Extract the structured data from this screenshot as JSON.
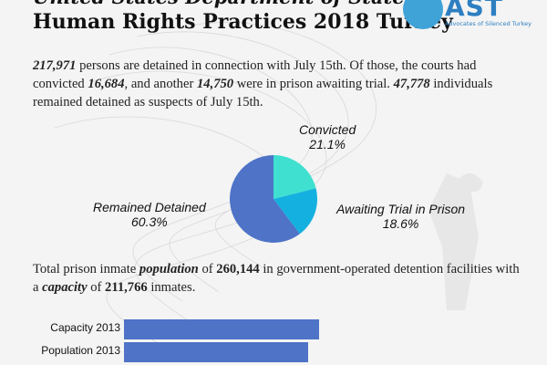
{
  "header": {
    "title_line1": "United States Department of State",
    "title_line2": "Human Rights Practices 2018 Turkey",
    "logo_text": "AST",
    "logo_subtitle": "Advocates of Silenced Turkey"
  },
  "paragraph1": {
    "n1": "217,971",
    "t1": " persons are detained in connection with July 15th. Of those, the courts had convicted ",
    "n2": "16,684",
    "t2": ", and another ",
    "n3": "14,750",
    "t3": " were in prison awaiting trial. ",
    "n4": "47,778",
    "t4": " individuals remained detained as suspects of July 15th."
  },
  "paragraph2": {
    "t1": "Total prison inmate ",
    "k1": "population",
    "t2": " of ",
    "n1": "260,144",
    "t3": " in government-operated detention facilities with a ",
    "k2": "capacity",
    "t4": " of ",
    "n2": "211,766",
    "t5": " inmates."
  },
  "colors": {
    "convicted": "#3fe0d0",
    "awaiting": "#14b1e0",
    "remained": "#4e73c7",
    "bars": "#4e73c7"
  },
  "chart_data": [
    {
      "type": "pie",
      "slices": [
        {
          "label": "Convicted",
          "value": 21.1,
          "display": "21.1%"
        },
        {
          "label": "Awaiting Trial in Prison",
          "value": 18.6,
          "display": "18.6%"
        },
        {
          "label": "Remained Detained",
          "value": 60.3,
          "display": "60.3%"
        }
      ]
    },
    {
      "type": "bar",
      "orientation": "horizontal",
      "categories": [
        "Capacity 2013",
        "Population 2013"
      ],
      "values": [
        145000,
        137000
      ]
    }
  ]
}
